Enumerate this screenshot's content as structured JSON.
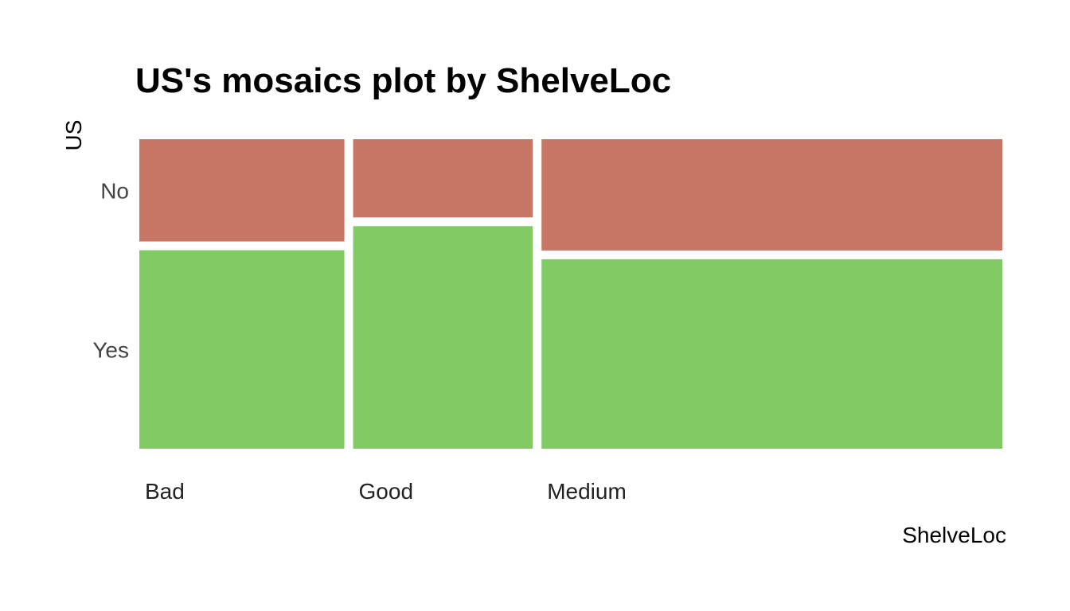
{
  "chart_data": {
    "type": "mosaic",
    "title": "US's mosaics plot by ShelveLoc",
    "xlabel": "ShelveLoc",
    "ylabel": "US",
    "categories": [
      "Bad",
      "Good",
      "Medium"
    ],
    "category_shares": [
      0.2425,
      0.2125,
      0.545
    ],
    "y_levels": [
      "No",
      "Yes"
    ],
    "y_level_colors": {
      "No": "#c77564",
      "Yes": "#82cb64"
    },
    "series": [
      {
        "name": "No",
        "values": [
          0.34,
          0.26,
          0.37
        ]
      },
      {
        "name": "Yes",
        "values": [
          0.66,
          0.74,
          0.63
        ]
      }
    ],
    "grid": false,
    "legend": "none"
  }
}
